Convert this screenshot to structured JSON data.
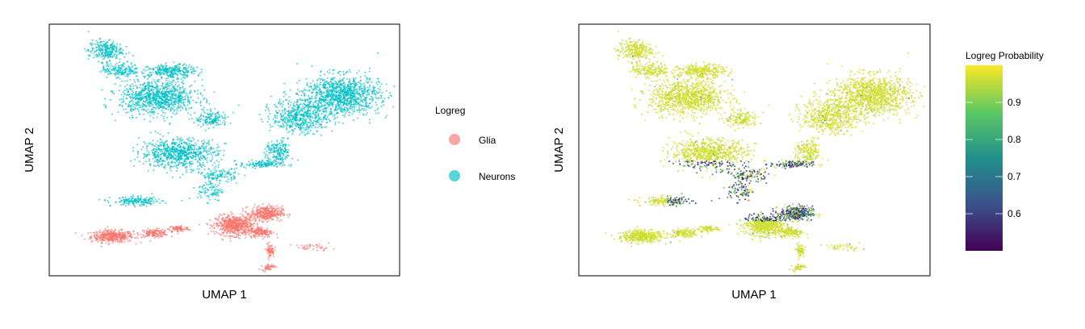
{
  "chart_data": [
    {
      "type": "scatter",
      "xlabel": "UMAP 1",
      "ylabel": "UMAP 2",
      "axis_ticks": false,
      "grid": false,
      "legend_title": "Logreg",
      "legend_placement": "right",
      "series": [
        {
          "name": "Glia",
          "color": "#F8766D",
          "regions": [
            {
              "x": 3.6,
              "y": 3.6,
              "sx": 1.0,
              "sy": 0.45,
              "n": 420
            },
            {
              "x": 6.0,
              "y": 3.9,
              "sx": 0.7,
              "sy": 0.3,
              "n": 160
            },
            {
              "x": 7.4,
              "y": 4.3,
              "sx": 0.5,
              "sy": 0.25,
              "n": 90
            },
            {
              "x": 10.6,
              "y": 4.6,
              "sx": 0.9,
              "sy": 0.75,
              "n": 650
            },
            {
              "x": 12.4,
              "y": 5.7,
              "sx": 0.75,
              "sy": 0.55,
              "n": 380
            },
            {
              "x": 12.1,
              "y": 4.0,
              "sx": 0.55,
              "sy": 0.4,
              "n": 160
            },
            {
              "x": 12.6,
              "y": 2.3,
              "sx": 0.2,
              "sy": 0.5,
              "n": 70
            },
            {
              "x": 12.5,
              "y": 0.8,
              "sx": 0.3,
              "sy": 0.25,
              "n": 50
            },
            {
              "x": 15.1,
              "y": 2.6,
              "sx": 0.9,
              "sy": 0.25,
              "n": 40
            }
          ]
        },
        {
          "name": "Neurons",
          "color": "#00BFC4",
          "regions": [
            {
              "x": 3.2,
              "y": 20.6,
              "sx": 0.8,
              "sy": 0.8,
              "n": 260
            },
            {
              "x": 4.1,
              "y": 18.8,
              "sx": 0.9,
              "sy": 0.55,
              "n": 180
            },
            {
              "x": 6.2,
              "y": 16.3,
              "sx": 1.8,
              "sy": 1.3,
              "n": 950
            },
            {
              "x": 7.0,
              "y": 18.7,
              "sx": 1.1,
              "sy": 0.5,
              "n": 280
            },
            {
              "x": 7.4,
              "y": 11.2,
              "sx": 1.8,
              "sy": 1.1,
              "n": 750
            },
            {
              "x": 9.3,
              "y": 14.3,
              "sx": 0.8,
              "sy": 0.6,
              "n": 150
            },
            {
              "x": 9.7,
              "y": 9.2,
              "sx": 0.9,
              "sy": 0.5,
              "n": 120
            },
            {
              "x": 5.0,
              "y": 6.8,
              "sx": 1.2,
              "sy": 0.35,
              "n": 180
            },
            {
              "x": 16.7,
              "y": 16.5,
              "sx": 1.8,
              "sy": 1.5,
              "n": 1100
            },
            {
              "x": 14.3,
              "y": 14.6,
              "sx": 1.3,
              "sy": 1.3,
              "n": 550
            },
            {
              "x": 13.1,
              "y": 11.3,
              "sx": 0.6,
              "sy": 0.9,
              "n": 180
            },
            {
              "x": 12.1,
              "y": 10.2,
              "sx": 1.0,
              "sy": 0.3,
              "n": 140
            },
            {
              "x": 9.2,
              "y": 7.8,
              "sx": 0.6,
              "sy": 0.8,
              "n": 90
            }
          ]
        }
      ]
    },
    {
      "type": "scatter",
      "xlabel": "UMAP 1",
      "ylabel": "UMAP 2",
      "axis_ticks": false,
      "grid": false,
      "colorbar": {
        "title": "Logreg Probability",
        "range": [
          0.5,
          1.0
        ],
        "ticks": [
          "0.6",
          "0.7",
          "0.8",
          "0.9"
        ],
        "tick_values": [
          0.6,
          0.7,
          0.8,
          0.9
        ],
        "colors": [
          "#440154",
          "#3B528B",
          "#21908C",
          "#5DC863",
          "#FDE725"
        ]
      },
      "same_embedding_as": "panel 1",
      "low_probability_band": {
        "x": [
          5.0,
          13.5
        ],
        "y": [
          5.0,
          10.5
        ],
        "value_range": [
          0.5,
          0.7
        ]
      },
      "high_probability_value": 0.98
    }
  ]
}
